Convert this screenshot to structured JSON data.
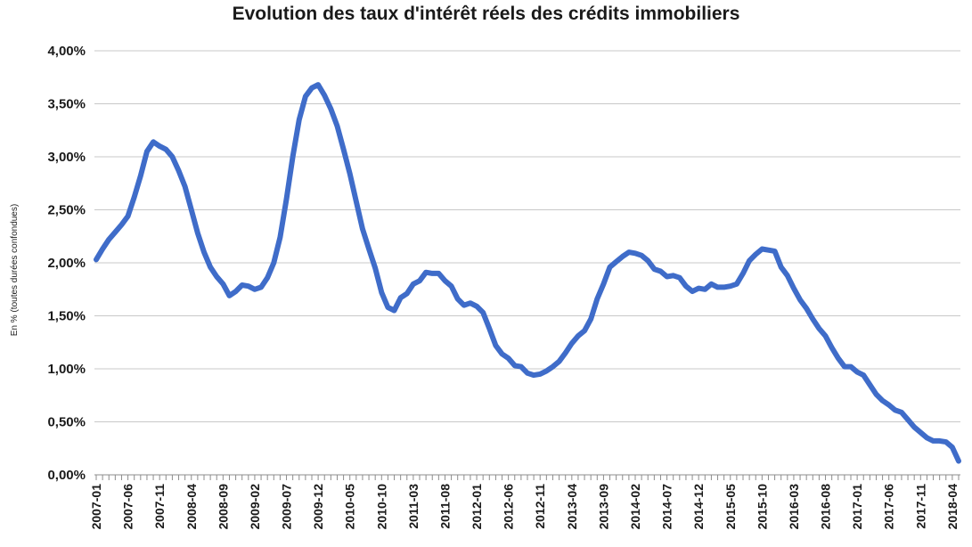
{
  "chart_data": {
    "type": "line",
    "title": "Evolution des taux d'intérêt réels des crédits immobiliers",
    "ylabel": "En % (toutes durées confondues)",
    "xlabel": "",
    "ylim": [
      0,
      4
    ],
    "ytick_labels": [
      "0,00%",
      "0,50%",
      "1,00%",
      "1,50%",
      "2,00%",
      "2,50%",
      "3,00%",
      "3,50%",
      "4,00%"
    ],
    "x_start": "2007-01",
    "x_end": "2018-05",
    "xtick_labels": [
      "2007-01",
      "2007-06",
      "2007-11",
      "2008-04",
      "2008-09",
      "2009-02",
      "2009-07",
      "2009-12",
      "2010-05",
      "2010-10",
      "2011-03",
      "2011-08",
      "2012-01",
      "2012-06",
      "2012-11",
      "2013-04",
      "2013-09",
      "2014-02",
      "2014-07",
      "2014-12",
      "2015-05",
      "2015-10",
      "2016-03",
      "2016-08",
      "2017-01",
      "2017-06",
      "2017-11",
      "2018-04"
    ],
    "grid": true,
    "line_color": "#3f6cc9",
    "series": [
      {
        "points": [
          [
            "2007-01",
            2.03
          ],
          [
            "2007-02",
            2.13
          ],
          [
            "2007-03",
            2.22
          ],
          [
            "2007-04",
            2.29
          ],
          [
            "2007-05",
            2.36
          ],
          [
            "2007-06",
            2.44
          ],
          [
            "2007-07",
            2.62
          ],
          [
            "2007-08",
            2.82
          ],
          [
            "2007-09",
            3.05
          ],
          [
            "2007-10",
            3.14
          ],
          [
            "2007-11",
            3.1
          ],
          [
            "2007-12",
            3.07
          ],
          [
            "2008-01",
            3.0
          ],
          [
            "2008-02",
            2.87
          ],
          [
            "2008-03",
            2.72
          ],
          [
            "2008-04",
            2.5
          ],
          [
            "2008-05",
            2.28
          ],
          [
            "2008-06",
            2.1
          ],
          [
            "2008-07",
            1.96
          ],
          [
            "2008-08",
            1.87
          ],
          [
            "2008-09",
            1.8
          ],
          [
            "2008-10",
            1.69
          ],
          [
            "2008-11",
            1.73
          ],
          [
            "2008-12",
            1.79
          ],
          [
            "2009-01",
            1.78
          ],
          [
            "2009-02",
            1.75
          ],
          [
            "2009-03",
            1.77
          ],
          [
            "2009-04",
            1.86
          ],
          [
            "2009-05",
            2.0
          ],
          [
            "2009-06",
            2.24
          ],
          [
            "2009-07",
            2.6
          ],
          [
            "2009-08",
            3.0
          ],
          [
            "2009-09",
            3.35
          ],
          [
            "2009-10",
            3.57
          ],
          [
            "2009-11",
            3.65
          ],
          [
            "2009-12",
            3.68
          ],
          [
            "2010-01",
            3.58
          ],
          [
            "2010-02",
            3.45
          ],
          [
            "2010-03",
            3.29
          ],
          [
            "2010-04",
            3.07
          ],
          [
            "2010-05",
            2.84
          ],
          [
            "2010-06",
            2.58
          ],
          [
            "2010-07",
            2.32
          ],
          [
            "2010-08",
            2.13
          ],
          [
            "2010-09",
            1.95
          ],
          [
            "2010-10",
            1.72
          ],
          [
            "2010-11",
            1.58
          ],
          [
            "2010-12",
            1.55
          ],
          [
            "2011-01",
            1.67
          ],
          [
            "2011-02",
            1.71
          ],
          [
            "2011-03",
            1.8
          ],
          [
            "2011-04",
            1.83
          ],
          [
            "2011-05",
            1.91
          ],
          [
            "2011-06",
            1.9
          ],
          [
            "2011-07",
            1.9
          ],
          [
            "2011-08",
            1.83
          ],
          [
            "2011-09",
            1.78
          ],
          [
            "2011-10",
            1.66
          ],
          [
            "2011-11",
            1.6
          ],
          [
            "2011-12",
            1.62
          ],
          [
            "2012-01",
            1.59
          ],
          [
            "2012-02",
            1.53
          ],
          [
            "2012-03",
            1.38
          ],
          [
            "2012-04",
            1.22
          ],
          [
            "2012-05",
            1.14
          ],
          [
            "2012-06",
            1.1
          ],
          [
            "2012-07",
            1.03
          ],
          [
            "2012-08",
            1.02
          ],
          [
            "2012-09",
            0.96
          ],
          [
            "2012-10",
            0.94
          ],
          [
            "2012-11",
            0.95
          ],
          [
            "2012-12",
            0.98
          ],
          [
            "2013-01",
            1.02
          ],
          [
            "2013-02",
            1.07
          ],
          [
            "2013-03",
            1.15
          ],
          [
            "2013-04",
            1.24
          ],
          [
            "2013-05",
            1.31
          ],
          [
            "2013-06",
            1.36
          ],
          [
            "2013-07",
            1.47
          ],
          [
            "2013-08",
            1.66
          ],
          [
            "2013-09",
            1.8
          ],
          [
            "2013-10",
            1.96
          ],
          [
            "2013-11",
            2.01
          ],
          [
            "2013-12",
            2.06
          ],
          [
            "2014-01",
            2.1
          ],
          [
            "2014-02",
            2.09
          ],
          [
            "2014-03",
            2.07
          ],
          [
            "2014-04",
            2.02
          ],
          [
            "2014-05",
            1.94
          ],
          [
            "2014-06",
            1.92
          ],
          [
            "2014-07",
            1.87
          ],
          [
            "2014-08",
            1.88
          ],
          [
            "2014-09",
            1.86
          ],
          [
            "2014-10",
            1.78
          ],
          [
            "2014-11",
            1.73
          ],
          [
            "2014-12",
            1.76
          ],
          [
            "2015-01",
            1.75
          ],
          [
            "2015-02",
            1.8
          ],
          [
            "2015-03",
            1.77
          ],
          [
            "2015-04",
            1.77
          ],
          [
            "2015-05",
            1.78
          ],
          [
            "2015-06",
            1.8
          ],
          [
            "2015-07",
            1.9
          ],
          [
            "2015-08",
            2.02
          ],
          [
            "2015-09",
            2.08
          ],
          [
            "2015-10",
            2.13
          ],
          [
            "2015-11",
            2.12
          ],
          [
            "2015-12",
            2.11
          ],
          [
            "2016-01",
            1.96
          ],
          [
            "2016-02",
            1.88
          ],
          [
            "2016-03",
            1.76
          ],
          [
            "2016-04",
            1.65
          ],
          [
            "2016-05",
            1.57
          ],
          [
            "2016-06",
            1.47
          ],
          [
            "2016-07",
            1.38
          ],
          [
            "2016-08",
            1.31
          ],
          [
            "2016-09",
            1.2
          ],
          [
            "2016-10",
            1.1
          ],
          [
            "2016-11",
            1.02
          ],
          [
            "2016-12",
            1.02
          ],
          [
            "2017-01",
            0.97
          ],
          [
            "2017-02",
            0.94
          ],
          [
            "2017-03",
            0.85
          ],
          [
            "2017-04",
            0.76
          ],
          [
            "2017-05",
            0.7
          ],
          [
            "2017-06",
            0.66
          ],
          [
            "2017-07",
            0.61
          ],
          [
            "2017-08",
            0.59
          ],
          [
            "2017-09",
            0.52
          ],
          [
            "2017-10",
            0.45
          ],
          [
            "2017-11",
            0.4
          ],
          [
            "2017-12",
            0.35
          ],
          [
            "2018-01",
            0.32
          ],
          [
            "2018-02",
            0.32
          ],
          [
            "2018-03",
            0.31
          ],
          [
            "2018-04",
            0.26
          ],
          [
            "2018-05",
            0.13
          ]
        ]
      }
    ]
  }
}
